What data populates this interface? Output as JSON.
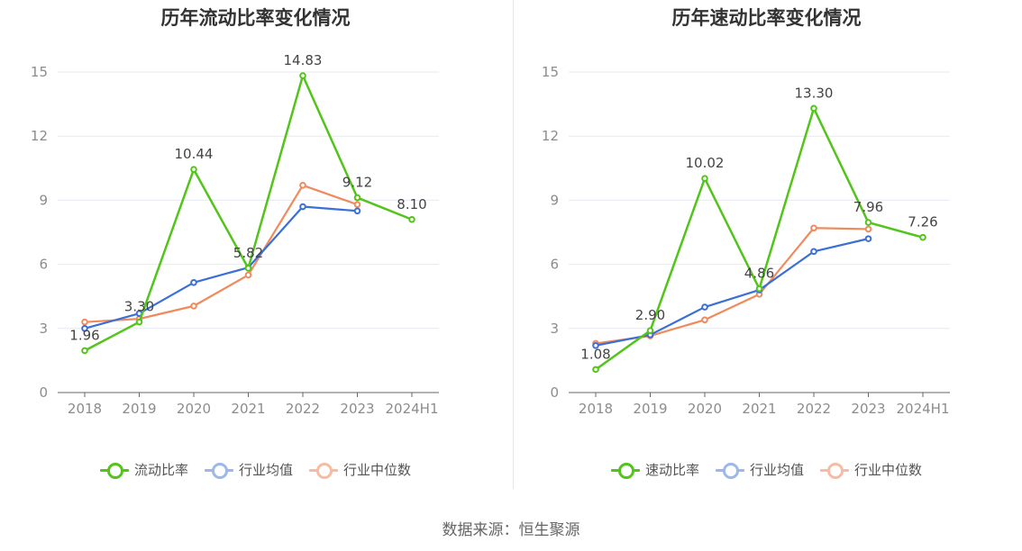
{
  "source": "数据来源：恒生聚源",
  "colors": {
    "primary": "#52c41a",
    "avg": "#3a6fd8",
    "median": "#f08a5d",
    "grid": "#e6e9f0",
    "axis": "#666666"
  },
  "chart_data": [
    {
      "type": "line",
      "title": "历年流动比率变化情况",
      "categories": [
        "2018",
        "2019",
        "2020",
        "2021",
        "2022",
        "2023",
        "2024H1"
      ],
      "ylim": [
        0,
        15
      ],
      "yticks": [
        0,
        3,
        6,
        9,
        12,
        15
      ],
      "series": [
        {
          "name": "流动比率",
          "values": [
            1.96,
            3.3,
            10.44,
            5.82,
            14.83,
            9.12,
            8.1
          ],
          "labels": [
            "1.96",
            "3.30",
            "10.44",
            "5.82",
            "14.83",
            "9.12",
            "8.10"
          ]
        },
        {
          "name": "行业均值",
          "values": [
            3.0,
            3.7,
            5.15,
            5.85,
            8.7,
            8.5,
            null
          ]
        },
        {
          "name": "行业中位数",
          "values": [
            3.3,
            3.45,
            4.05,
            5.5,
            9.7,
            8.8,
            null
          ]
        }
      ]
    },
    {
      "type": "line",
      "title": "历年速动比率变化情况",
      "categories": [
        "2018",
        "2019",
        "2020",
        "2021",
        "2022",
        "2023",
        "2024H1"
      ],
      "ylim": [
        0,
        15
      ],
      "yticks": [
        0,
        3,
        6,
        9,
        12,
        15
      ],
      "series": [
        {
          "name": "速动比率",
          "values": [
            1.08,
            2.9,
            10.02,
            4.86,
            13.3,
            7.96,
            7.26
          ],
          "labels": [
            "1.08",
            "2.90",
            "10.02",
            "4.86",
            "13.30",
            "7.96",
            "7.26"
          ]
        },
        {
          "name": "行业均值",
          "values": [
            2.2,
            2.7,
            4.0,
            4.8,
            6.6,
            7.2,
            null
          ]
        },
        {
          "name": "行业中位数",
          "values": [
            2.3,
            2.65,
            3.4,
            4.6,
            7.7,
            7.65,
            null
          ]
        }
      ]
    }
  ]
}
